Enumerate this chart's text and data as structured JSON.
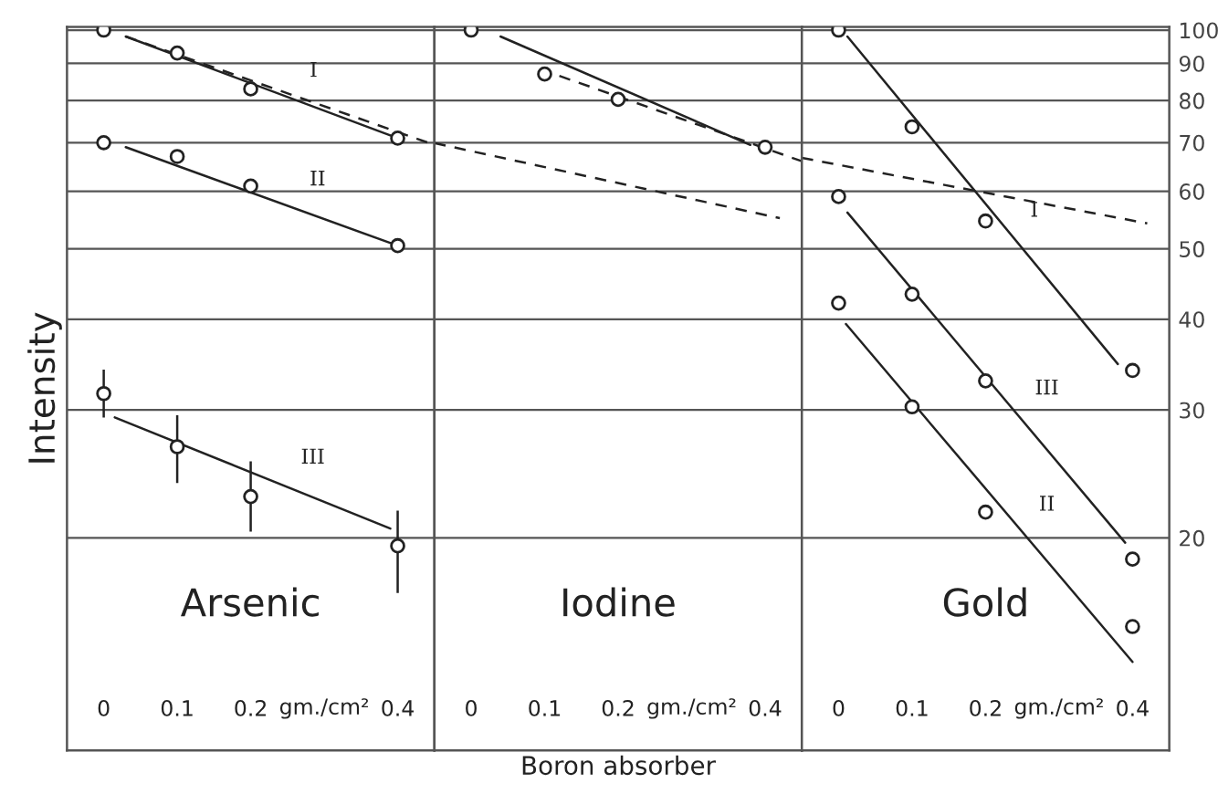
{
  "chart_data": [
    {
      "type": "scatter",
      "ylabel": "Intensity",
      "log": true,
      "grid": "y",
      "tick_labels": "x",
      "xlim": [
        -0.05,
        0.45
      ],
      "ylim": [
        10.2,
        101
      ],
      "xticks": [
        0,
        0.1,
        0.2,
        0.4
      ],
      "yticks": [
        20,
        30,
        40,
        50,
        60,
        70,
        80,
        90,
        100
      ],
      "annotations": [
        "Arsenic",
        "gm./cm²"
      ],
      "series": [
        {
          "marker": "circle",
          "color": "#222222",
          "x": [
            0,
            0.1,
            0.2,
            0.4
          ],
          "values": [
            100,
            93,
            83,
            71
          ]
        },
        {
          "marker": "circle",
          "color": "#222222",
          "x": [
            0,
            0.1,
            0.2,
            0.4
          ],
          "values": [
            70,
            67,
            61,
            50.5
          ]
        },
        {
          "marker": "circle",
          "color": "#222222",
          "x": [
            0,
            0.1,
            0.2,
            0.4
          ],
          "values": [
            31.6,
            26.7,
            22.8,
            19.5
          ],
          "errors": [
            [
              29.3,
              34.1
            ],
            [
              23.8,
              29.5
            ],
            [
              20.4,
              25.5
            ],
            [
              16.8,
              21.8
            ]
          ]
        },
        {
          "type": "line",
          "name": "I",
          "color": "#222222",
          "x": [
            0.03,
            0.4
          ],
          "values": [
            98,
            71
          ]
        },
        {
          "type": "line",
          "name": "II",
          "color": "#222222",
          "x": [
            0.03,
            0.4
          ],
          "values": [
            69,
            50.5
          ]
        },
        {
          "type": "line",
          "name": "III",
          "color": "#222222",
          "x": [
            0.015,
            0.39
          ],
          "values": [
            29.3,
            20.6
          ]
        },
        {
          "type": "line",
          "line_style": "dashed",
          "color": "#222222",
          "x": [
            0.03,
            0.45
          ],
          "values": [
            98,
            69.5
          ]
        }
      ]
    },
    {
      "type": "scatter",
      "xlabel": "Boron absorber",
      "log": true,
      "grid": "y",
      "tick_labels": "x",
      "xlim": [
        -0.05,
        0.45
      ],
      "ylim": [
        10.2,
        101
      ],
      "xticks": [
        0,
        0.1,
        0.2,
        0.4
      ],
      "yticks": [
        20,
        30,
        40,
        50,
        60,
        70,
        80,
        90,
        100
      ],
      "annotations": [
        "Iodine",
        "gm./cm²"
      ],
      "series": [
        {
          "marker": "circle",
          "color": "#222222",
          "x": [
            0,
            0.1,
            0.2,
            0.4
          ],
          "values": [
            100,
            87,
            80.3,
            69
          ]
        },
        {
          "type": "line",
          "color": "#222222",
          "x": [
            0.04,
            0.38
          ],
          "values": [
            98,
            69.5
          ]
        },
        {
          "type": "line",
          "line_style": "dashed",
          "color": "#222222",
          "x": [
            0.12,
            0.45
          ],
          "values": [
            86.5,
            66
          ]
        },
        {
          "type": "line",
          "line_style": "dashed",
          "color": "#222222",
          "x": [
            -0.05,
            0.42
          ],
          "values": [
            69.9,
            55.1
          ]
        }
      ]
    },
    {
      "type": "scatter",
      "log": true,
      "grid": "y",
      "xlim": [
        -0.05,
        0.45
      ],
      "ylim": [
        10.2,
        101
      ],
      "xticks": [
        0,
        0.1,
        0.2,
        0.4
      ],
      "yticks": [
        20,
        30,
        40,
        50,
        60,
        70,
        80,
        90,
        100
      ],
      "annotations": [
        "Gold",
        "gm./cm²"
      ],
      "series": [
        {
          "marker": "circle",
          "color": "#222222",
          "x": [
            0,
            0.1,
            0.2,
            0.4
          ],
          "values": [
            100,
            73.6,
            54.6,
            34
          ]
        },
        {
          "marker": "circle",
          "color": "#222222",
          "x": [
            0,
            0.1,
            0.2,
            0.4
          ],
          "values": [
            59,
            43.3,
            32.9,
            18.7
          ]
        },
        {
          "marker": "circle",
          "color": "#222222",
          "x": [
            0,
            0.1,
            0.2,
            0.4
          ],
          "values": [
            42.1,
            30.3,
            21.7,
            15.1
          ]
        },
        {
          "type": "line",
          "name": "I",
          "color": "#222222",
          "x": [
            0.012,
            0.38
          ],
          "values": [
            98,
            34.7
          ]
        },
        {
          "type": "line",
          "name": "III",
          "color": "#222222",
          "x": [
            0.012,
            0.39
          ],
          "values": [
            56.1,
            19.7
          ]
        },
        {
          "type": "line",
          "name": "II",
          "color": "#222222",
          "x": [
            0.01,
            0.4
          ],
          "values": [
            39.4,
            13.5
          ]
        },
        {
          "type": "line",
          "line_style": "dashed",
          "color": "#222222",
          "x": [
            -0.05,
            0.42
          ],
          "values": [
            66.7,
            54.2
          ]
        }
      ]
    }
  ]
}
